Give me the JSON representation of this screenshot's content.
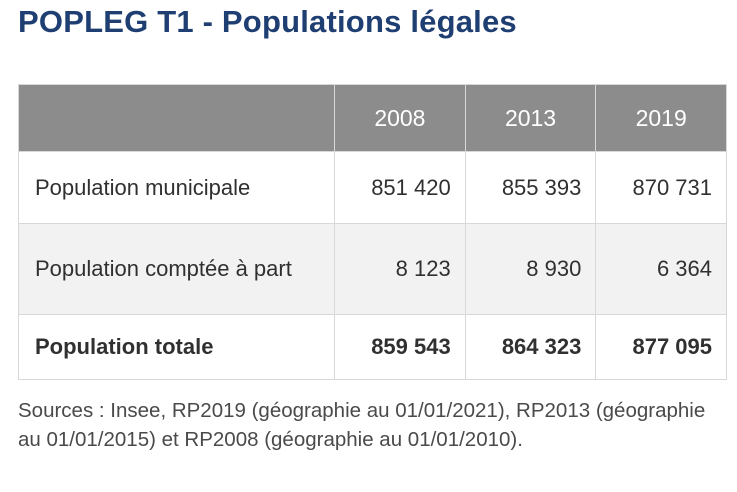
{
  "title": "POPLEG T1 - Populations légales",
  "table": {
    "years": [
      "2008",
      "2013",
      "2019"
    ],
    "rows": [
      {
        "label": "Population municipale",
        "values": [
          "851 420",
          "855 393",
          "870 731"
        ]
      },
      {
        "label": "Population comptée à part",
        "values": [
          "8 123",
          "8 930",
          "6 364"
        ]
      },
      {
        "label": "Population totale",
        "values": [
          "859 543",
          "864 323",
          "877 095"
        ]
      }
    ]
  },
  "sources": "Sources : Insee, RP2019 (géographie au 01/01/2021), RP2013 (géographie au 01/01/2015) et RP2008 (géographie au 01/01/2010)."
}
